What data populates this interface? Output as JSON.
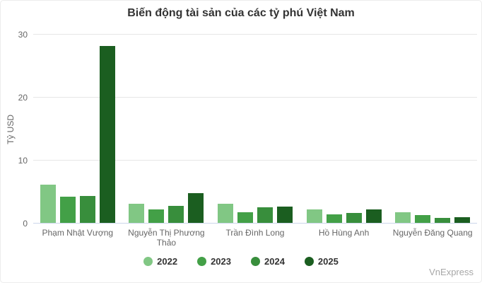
{
  "watermark": "VnExpress",
  "colors": {
    "background": "#ffffff",
    "title": "#333333",
    "tick_label": "#666666",
    "x_label": "#666666",
    "grid_line": "#e6e6e6",
    "axis_line": "#ccd6eb",
    "legend_label": "#333333",
    "watermark": "#a7a7a7"
  },
  "chart_data": {
    "type": "bar",
    "title": "Biến động tài sản của các tỷ phú Việt Nam",
    "xlabel": "",
    "ylabel": "Tỷ USD",
    "ylim": [
      0,
      30
    ],
    "yticks": [
      0,
      10,
      20,
      30
    ],
    "grid": true,
    "legend_position": "bottom",
    "categories": [
      "Phạm Nhật Vượng",
      "Nguyễn Thị Phương Thảo",
      "Trần Đình Long",
      "Hồ Hùng Anh",
      "Nguyễn Đăng Quang"
    ],
    "series": [
      {
        "name": "2022",
        "color": "#81c784",
        "values": [
          6.2,
          3.1,
          3.2,
          2.3,
          1.8
        ]
      },
      {
        "name": "2023",
        "color": "#43a047",
        "values": [
          4.3,
          2.2,
          1.8,
          1.5,
          1.3
        ]
      },
      {
        "name": "2024",
        "color": "#388e3c",
        "values": [
          4.4,
          2.8,
          2.6,
          1.7,
          0.9
        ]
      },
      {
        "name": "2025",
        "color": "#1b5e20",
        "values": [
          28.2,
          4.8,
          2.7,
          2.3,
          1.0
        ]
      }
    ]
  }
}
